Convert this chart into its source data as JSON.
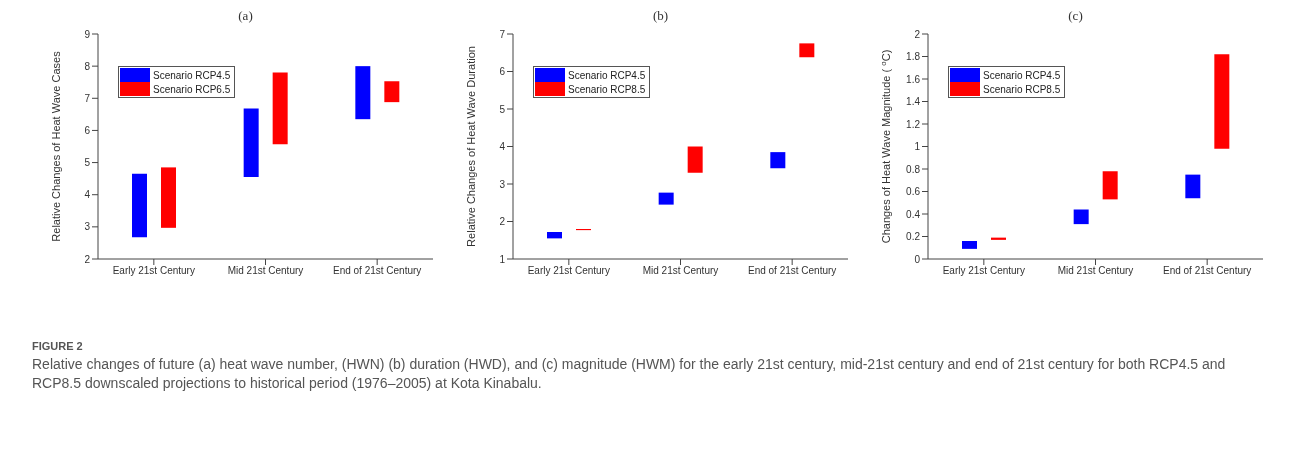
{
  "chart_data": [
    {
      "type": "bar",
      "title": "(a)",
      "ylabel": "Relative Changes of Heat Wave Cases",
      "categories": [
        "Early 21st Century",
        "Mid 21st Century",
        "End of 21st Century"
      ],
      "ylim": [
        2,
        9
      ],
      "yticks": [
        2,
        3,
        4,
        5,
        6,
        7,
        8,
        9
      ],
      "legend": "top left",
      "series": [
        {
          "name": "Scenario RCP4.5",
          "color": "#0000ff",
          "base": [
            2.68,
            4.55,
            6.35
          ],
          "values": [
            1.97,
            2.13,
            1.65
          ]
        },
        {
          "name": "Scenario RCP6.5",
          "color": "#ff0000",
          "base": [
            2.97,
            5.57,
            6.88
          ],
          "values": [
            1.88,
            2.23,
            0.65
          ]
        }
      ],
      "annotations": [
        "FIGURE 2",
        "Relative changes of future (a) heat wave number, (HWN) (b) duration (HWD), and (c) magnitude (HWM) for the early 21st century, mid-21st century and end of 21st century for both RCP4.5 and RCP8.5 downscaled projections to historical period (1976–2005) at Kota Kinabalu."
      ]
    },
    {
      "type": "bar",
      "title": "(b)",
      "ylabel": "Relative Changes of Heat Wave Duration",
      "categories": [
        "Early 21st Century",
        "Mid 21st Century",
        "End of 21st Century"
      ],
      "ylim": [
        1,
        7
      ],
      "yticks": [
        1,
        2,
        3,
        4,
        5,
        6,
        7
      ],
      "legend": "top left",
      "series": [
        {
          "name": "Scenario RCP4.5",
          "color": "#0000ff",
          "base": [
            1.55,
            2.45,
            3.42
          ],
          "values": [
            0.17,
            0.32,
            0.43
          ]
        },
        {
          "name": "Scenario RCP8.5",
          "color": "#ff0000",
          "base": [
            1.77,
            3.3,
            6.38
          ],
          "values": [
            0.03,
            0.7,
            0.37
          ]
        }
      ]
    },
    {
      "type": "bar",
      "title": "(c)",
      "ylabel": "Changes of Heat Wave Magnitude ( $^{o}$C)",
      "categories": [
        "Early 21st Century",
        "Mid 21st Century",
        "End of 21st Century"
      ],
      "ylim": [
        0,
        2
      ],
      "yticks": [
        0,
        0.2,
        0.4,
        0.6,
        0.8,
        1,
        1.2,
        1.4,
        1.6,
        1.8,
        2
      ],
      "legend": "top left",
      "series": [
        {
          "name": "Scenario RCP4.5",
          "color": "#0000ff",
          "base": [
            0.09,
            0.31,
            0.54
          ],
          "values": [
            0.07,
            0.13,
            0.21
          ]
        },
        {
          "name": "Scenario RCP8.5",
          "color": "#ff0000",
          "base": [
            0.17,
            0.53,
            0.98
          ],
          "values": [
            0.02,
            0.25,
            0.84
          ]
        }
      ]
    }
  ]
}
